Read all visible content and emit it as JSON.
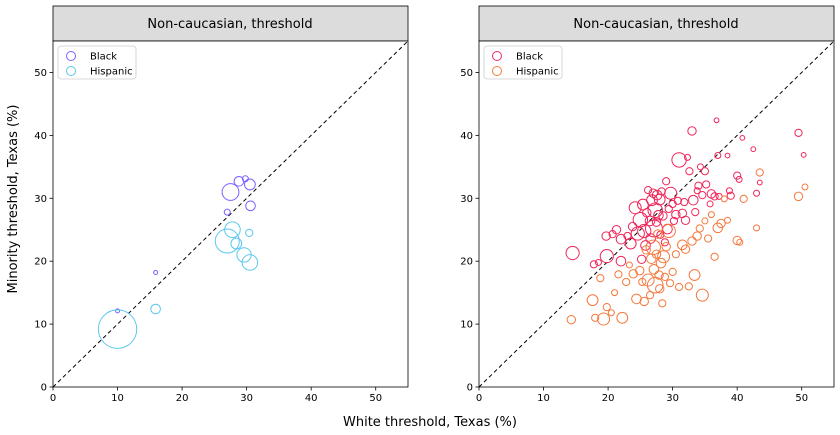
{
  "figure": {
    "xlabel": "White threshold, Texas (%)",
    "ylabel": "Minority threshold, Texas (%)"
  },
  "panels": [
    {
      "title": "Non-caucasian, threshold",
      "legend": [
        "Black",
        "Hispanic"
      ]
    },
    {
      "title": "Non-caucasian, threshold",
      "legend": [
        "Black",
        "Hispanic"
      ]
    }
  ],
  "colors": {
    "Black": "#7b61ff",
    "Hispanic": "#5bc8ef",
    "Black2": "#f0265a",
    "Hispanic2": "#f5783c"
  },
  "chart_data": [
    {
      "type": "scatter",
      "title": "Non-caucasian, threshold",
      "xlabel": "White threshold, Texas (%)",
      "ylabel": "Minority threshold, Texas (%)",
      "xlim": [
        0,
        55
      ],
      "ylim": [
        0,
        55
      ],
      "xticks": [
        0,
        10,
        20,
        30,
        40,
        50
      ],
      "yticks": [
        0,
        10,
        20,
        30,
        40,
        50
      ],
      "reference_line": "y = x (dashed)",
      "legend_position": "top-left",
      "series": [
        {
          "name": "Black",
          "points": [
            {
              "x": 27.5,
              "y": 31.0,
              "size": 1.4
            },
            {
              "x": 28.8,
              "y": 32.7,
              "size": 0.8
            },
            {
              "x": 29.8,
              "y": 33.1,
              "size": 0.5
            },
            {
              "x": 30.5,
              "y": 32.2,
              "size": 0.9
            },
            {
              "x": 30.6,
              "y": 28.8,
              "size": 0.8
            },
            {
              "x": 27.0,
              "y": 27.8,
              "size": 0.5
            },
            {
              "x": 15.9,
              "y": 18.2,
              "size": 0.3
            },
            {
              "x": 10.0,
              "y": 12.1,
              "size": 0.3
            }
          ]
        },
        {
          "name": "Hispanic",
          "points": [
            {
              "x": 10.0,
              "y": 9.2,
              "size": 3.2
            },
            {
              "x": 15.9,
              "y": 12.4,
              "size": 0.8
            },
            {
              "x": 27.0,
              "y": 23.2,
              "size": 2.0
            },
            {
              "x": 27.8,
              "y": 25.0,
              "size": 1.3
            },
            {
              "x": 28.4,
              "y": 22.8,
              "size": 0.9
            },
            {
              "x": 29.6,
              "y": 21.0,
              "size": 1.2
            },
            {
              "x": 30.5,
              "y": 19.8,
              "size": 1.3
            },
            {
              "x": 30.4,
              "y": 24.5,
              "size": 0.6
            }
          ]
        }
      ]
    },
    {
      "type": "scatter",
      "title": "Non-caucasian, threshold",
      "xlabel": "White threshold, Texas (%)",
      "ylabel": "Minority threshold, Texas (%)",
      "xlim": [
        0,
        55
      ],
      "ylim": [
        0,
        55
      ],
      "xticks": [
        0,
        10,
        20,
        30,
        40,
        50
      ],
      "yticks": [
        0,
        10,
        20,
        30,
        40,
        50
      ],
      "reference_line": "y = x (dashed)",
      "legend_position": "top-left",
      "series": [
        {
          "name": "Black",
          "points": [
            {
              "x": 14.5,
              "y": 21.3,
              "size": 1.1
            },
            {
              "x": 17.8,
              "y": 19.5,
              "size": 0.6
            },
            {
              "x": 18.5,
              "y": 19.8,
              "size": 0.5
            },
            {
              "x": 19.8,
              "y": 20.8,
              "size": 1.1
            },
            {
              "x": 19.7,
              "y": 24.0,
              "size": 0.7
            },
            {
              "x": 20.7,
              "y": 24.3,
              "size": 0.6
            },
            {
              "x": 21.3,
              "y": 25.0,
              "size": 0.7
            },
            {
              "x": 22.0,
              "y": 23.5,
              "size": 0.8
            },
            {
              "x": 22.0,
              "y": 20.0,
              "size": 0.8
            },
            {
              "x": 23.0,
              "y": 24.0,
              "size": 0.6
            },
            {
              "x": 23.5,
              "y": 22.8,
              "size": 0.9
            },
            {
              "x": 23.8,
              "y": 25.5,
              "size": 0.7
            },
            {
              "x": 24.2,
              "y": 28.5,
              "size": 1.0
            },
            {
              "x": 24.6,
              "y": 24.4,
              "size": 1.1
            },
            {
              "x": 25.0,
              "y": 26.6,
              "size": 1.2
            },
            {
              "x": 25.2,
              "y": 20.3,
              "size": 0.7
            },
            {
              "x": 25.4,
              "y": 29.0,
              "size": 0.9
            },
            {
              "x": 25.6,
              "y": 24.8,
              "size": 1.1
            },
            {
              "x": 25.8,
              "y": 22.5,
              "size": 0.8
            },
            {
              "x": 26.0,
              "y": 27.7,
              "size": 0.7
            },
            {
              "x": 26.2,
              "y": 31.3,
              "size": 0.6
            },
            {
              "x": 26.5,
              "y": 26.4,
              "size": 0.8
            },
            {
              "x": 26.6,
              "y": 23.6,
              "size": 0.8
            },
            {
              "x": 26.8,
              "y": 29.7,
              "size": 0.9
            },
            {
              "x": 27.0,
              "y": 30.8,
              "size": 0.7
            },
            {
              "x": 27.1,
              "y": 25.2,
              "size": 1.4
            },
            {
              "x": 27.3,
              "y": 28.1,
              "size": 1.2
            },
            {
              "x": 27.5,
              "y": 26.2,
              "size": 0.7
            },
            {
              "x": 27.6,
              "y": 30.5,
              "size": 0.8
            },
            {
              "x": 27.8,
              "y": 27.3,
              "size": 0.8
            },
            {
              "x": 28.0,
              "y": 29.8,
              "size": 0.9
            },
            {
              "x": 28.1,
              "y": 24.2,
              "size": 0.6
            },
            {
              "x": 28.3,
              "y": 31.1,
              "size": 0.6
            },
            {
              "x": 28.5,
              "y": 27.2,
              "size": 0.7
            },
            {
              "x": 28.8,
              "y": 23.0,
              "size": 0.6
            },
            {
              "x": 29.0,
              "y": 32.7,
              "size": 0.6
            },
            {
              "x": 29.2,
              "y": 25.1,
              "size": 0.8
            },
            {
              "x": 29.4,
              "y": 28.3,
              "size": 0.6
            },
            {
              "x": 29.7,
              "y": 30.8,
              "size": 1.0
            },
            {
              "x": 30.0,
              "y": 29.1,
              "size": 0.6
            },
            {
              "x": 30.2,
              "y": 26.4,
              "size": 0.6
            },
            {
              "x": 30.5,
              "y": 27.4,
              "size": 0.7
            },
            {
              "x": 30.8,
              "y": 29.6,
              "size": 0.6
            },
            {
              "x": 31.0,
              "y": 36.1,
              "size": 1.2
            },
            {
              "x": 31.5,
              "y": 27.6,
              "size": 0.7
            },
            {
              "x": 31.8,
              "y": 29.4,
              "size": 0.6
            },
            {
              "x": 32.0,
              "y": 26.5,
              "size": 0.7
            },
            {
              "x": 32.3,
              "y": 36.5,
              "size": 0.5
            },
            {
              "x": 32.6,
              "y": 34.3,
              "size": 0.6
            },
            {
              "x": 33.0,
              "y": 40.7,
              "size": 0.7
            },
            {
              "x": 33.2,
              "y": 29.7,
              "size": 0.8
            },
            {
              "x": 33.5,
              "y": 27.8,
              "size": 0.6
            },
            {
              "x": 33.8,
              "y": 31.2,
              "size": 0.5
            },
            {
              "x": 34.0,
              "y": 32.0,
              "size": 0.6
            },
            {
              "x": 34.3,
              "y": 35.0,
              "size": 0.5
            },
            {
              "x": 34.6,
              "y": 30.5,
              "size": 0.6
            },
            {
              "x": 35.0,
              "y": 34.3,
              "size": 0.6
            },
            {
              "x": 35.2,
              "y": 32.2,
              "size": 0.6
            },
            {
              "x": 35.8,
              "y": 29.1,
              "size": 0.5
            },
            {
              "x": 36.0,
              "y": 30.7,
              "size": 0.7
            },
            {
              "x": 36.5,
              "y": 30.3,
              "size": 0.6
            },
            {
              "x": 36.8,
              "y": 42.4,
              "size": 0.4
            },
            {
              "x": 37.0,
              "y": 36.8,
              "size": 0.5
            },
            {
              "x": 37.2,
              "y": 30.3,
              "size": 0.5
            },
            {
              "x": 38.5,
              "y": 36.8,
              "size": 0.4
            },
            {
              "x": 38.8,
              "y": 31.2,
              "size": 0.5
            },
            {
              "x": 39.0,
              "y": 30.4,
              "size": 0.6
            },
            {
              "x": 40.0,
              "y": 33.6,
              "size": 0.6
            },
            {
              "x": 40.3,
              "y": 33.0,
              "size": 0.5
            },
            {
              "x": 40.8,
              "y": 39.6,
              "size": 0.4
            },
            {
              "x": 42.5,
              "y": 37.8,
              "size": 0.4
            },
            {
              "x": 43.0,
              "y": 30.8,
              "size": 0.5
            },
            {
              "x": 43.5,
              "y": 32.5,
              "size": 0.4
            },
            {
              "x": 49.5,
              "y": 40.4,
              "size": 0.6
            },
            {
              "x": 50.3,
              "y": 36.9,
              "size": 0.4
            }
          ]
        },
        {
          "name": "Hispanic",
          "points": [
            {
              "x": 14.3,
              "y": 10.7,
              "size": 0.7
            },
            {
              "x": 17.6,
              "y": 13.8,
              "size": 0.9
            },
            {
              "x": 18.0,
              "y": 11.0,
              "size": 0.6
            },
            {
              "x": 18.8,
              "y": 17.3,
              "size": 0.6
            },
            {
              "x": 19.3,
              "y": 10.8,
              "size": 1.0
            },
            {
              "x": 19.8,
              "y": 12.7,
              "size": 0.6
            },
            {
              "x": 20.5,
              "y": 11.8,
              "size": 0.5
            },
            {
              "x": 21.0,
              "y": 15.0,
              "size": 0.5
            },
            {
              "x": 21.6,
              "y": 17.9,
              "size": 0.6
            },
            {
              "x": 22.2,
              "y": 11.0,
              "size": 0.9
            },
            {
              "x": 22.8,
              "y": 16.7,
              "size": 0.6
            },
            {
              "x": 23.3,
              "y": 19.4,
              "size": 0.5
            },
            {
              "x": 23.9,
              "y": 18.0,
              "size": 0.7
            },
            {
              "x": 24.4,
              "y": 14.0,
              "size": 0.8
            },
            {
              "x": 24.9,
              "y": 18.5,
              "size": 0.7
            },
            {
              "x": 25.3,
              "y": 16.7,
              "size": 0.6
            },
            {
              "x": 25.6,
              "y": 13.6,
              "size": 0.7
            },
            {
              "x": 25.9,
              "y": 21.8,
              "size": 0.7
            },
            {
              "x": 26.2,
              "y": 17.0,
              "size": 1.0
            },
            {
              "x": 26.5,
              "y": 14.6,
              "size": 0.6
            },
            {
              "x": 26.7,
              "y": 20.4,
              "size": 0.8
            },
            {
              "x": 27.0,
              "y": 22.2,
              "size": 1.2
            },
            {
              "x": 27.1,
              "y": 18.7,
              "size": 0.8
            },
            {
              "x": 27.3,
              "y": 16.2,
              "size": 1.3
            },
            {
              "x": 27.5,
              "y": 21.1,
              "size": 0.7
            },
            {
              "x": 27.7,
              "y": 24.3,
              "size": 0.7
            },
            {
              "x": 27.9,
              "y": 17.8,
              "size": 0.7
            },
            {
              "x": 28.0,
              "y": 15.6,
              "size": 0.7
            },
            {
              "x": 28.2,
              "y": 19.7,
              "size": 0.8
            },
            {
              "x": 28.4,
              "y": 13.3,
              "size": 0.6
            },
            {
              "x": 28.6,
              "y": 20.7,
              "size": 1.0
            },
            {
              "x": 28.8,
              "y": 17.5,
              "size": 0.6
            },
            {
              "x": 29.0,
              "y": 22.3,
              "size": 0.7
            },
            {
              "x": 29.4,
              "y": 24.8,
              "size": 1.1
            },
            {
              "x": 29.6,
              "y": 16.5,
              "size": 0.6
            },
            {
              "x": 30.0,
              "y": 18.3,
              "size": 0.6
            },
            {
              "x": 30.5,
              "y": 21.1,
              "size": 0.6
            },
            {
              "x": 31.0,
              "y": 15.9,
              "size": 0.6
            },
            {
              "x": 31.5,
              "y": 22.6,
              "size": 0.8
            },
            {
              "x": 32.0,
              "y": 21.9,
              "size": 0.7
            },
            {
              "x": 32.5,
              "y": 16.0,
              "size": 0.6
            },
            {
              "x": 33.0,
              "y": 23.2,
              "size": 0.7
            },
            {
              "x": 33.4,
              "y": 17.8,
              "size": 0.9
            },
            {
              "x": 33.8,
              "y": 24.0,
              "size": 0.7
            },
            {
              "x": 34.2,
              "y": 25.2,
              "size": 0.6
            },
            {
              "x": 34.6,
              "y": 14.6,
              "size": 1.0
            },
            {
              "x": 35.0,
              "y": 26.4,
              "size": 0.5
            },
            {
              "x": 35.5,
              "y": 23.6,
              "size": 0.6
            },
            {
              "x": 36.0,
              "y": 27.4,
              "size": 0.5
            },
            {
              "x": 36.5,
              "y": 20.7,
              "size": 0.6
            },
            {
              "x": 37.0,
              "y": 25.3,
              "size": 0.8
            },
            {
              "x": 37.5,
              "y": 26.0,
              "size": 0.7
            },
            {
              "x": 38.0,
              "y": 29.9,
              "size": 0.5
            },
            {
              "x": 38.5,
              "y": 26.5,
              "size": 0.5
            },
            {
              "x": 40.0,
              "y": 23.3,
              "size": 0.7
            },
            {
              "x": 40.4,
              "y": 23.0,
              "size": 0.5
            },
            {
              "x": 41.0,
              "y": 29.9,
              "size": 0.6
            },
            {
              "x": 43.0,
              "y": 25.3,
              "size": 0.5
            },
            {
              "x": 43.5,
              "y": 34.1,
              "size": 0.6
            },
            {
              "x": 49.5,
              "y": 30.3,
              "size": 0.7
            },
            {
              "x": 50.5,
              "y": 31.8,
              "size": 0.5
            }
          ]
        }
      ]
    }
  ]
}
